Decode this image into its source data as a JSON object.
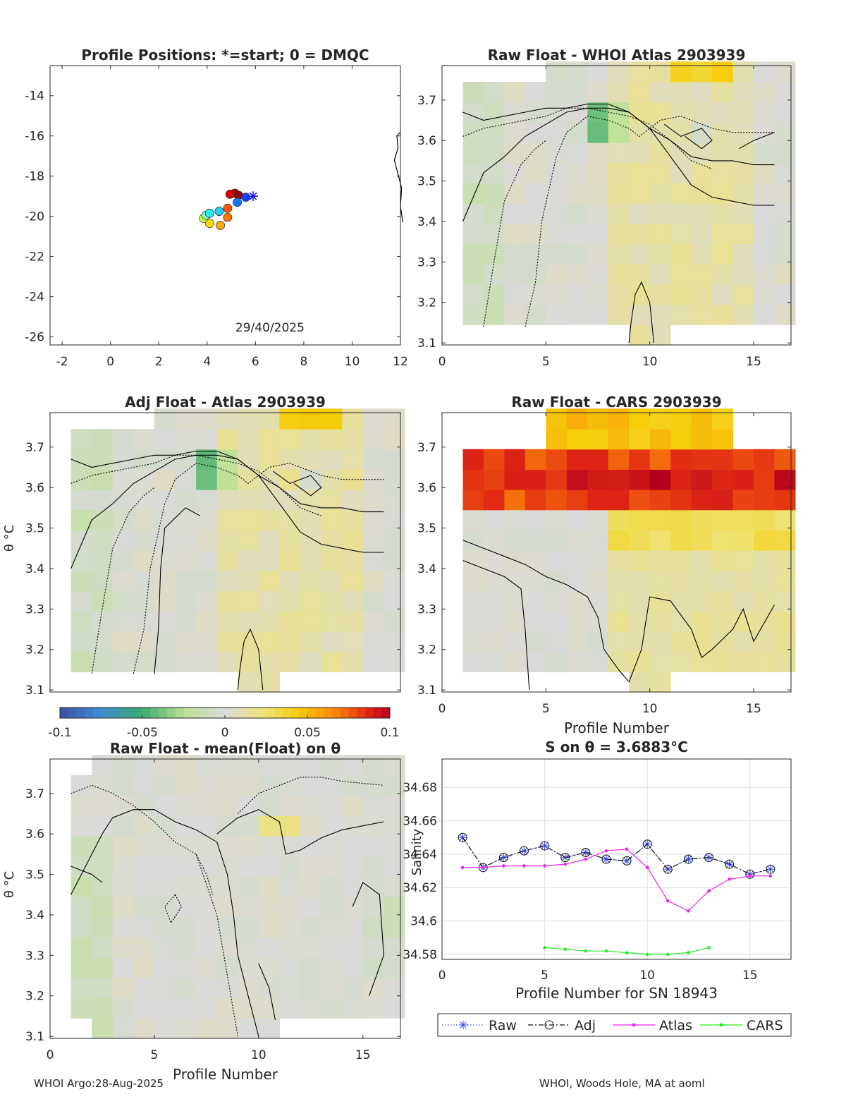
{
  "colors": {
    "raw": "#3344ee",
    "adj": "#111111",
    "atlas": "#ee22ee",
    "cars": "#22ee22",
    "contour": "#000000",
    "grid": "#dddddd"
  },
  "footer": {
    "left": "WHOI Argo:28-Aug-2025",
    "right": "WHOI, Woods Hole, MA at aoml"
  },
  "colorbar": {
    "min": -0.1,
    "max": 0.1,
    "ticks": [
      "-0.1",
      "-0.05",
      "0",
      "0.05",
      "0.1"
    ]
  },
  "chart_data": [
    {
      "id": "positions",
      "type": "scatter",
      "title": "Profile Positions: *=start; 0 = DMQC",
      "xlim": [
        -2.5,
        12
      ],
      "ylim": [
        -26.4,
        -12.5
      ],
      "xticks": [
        "-2",
        "0",
        "2",
        "4",
        "6",
        "8",
        "10",
        "12"
      ],
      "yticks": [
        "-14",
        "-16",
        "-18",
        "-20",
        "-22",
        "-24",
        "-26"
      ],
      "annotation": "29/40/2025",
      "points": [
        {
          "lon": 5.9,
          "lat": -19.0,
          "color": "#0000ff",
          "marker": "star"
        },
        {
          "lon": 5.6,
          "lat": -19.05,
          "color": "#1144ff"
        },
        {
          "lon": 5.25,
          "lat": -19.3,
          "color": "#1177ff"
        },
        {
          "lon": 4.85,
          "lat": -19.6,
          "color": "#ff5500"
        },
        {
          "lon": 4.5,
          "lat": -19.75,
          "color": "#22ccff"
        },
        {
          "lon": 4.1,
          "lat": -19.85,
          "color": "#22eeff"
        },
        {
          "lon": 3.95,
          "lat": -19.95,
          "color": "#88ffaa"
        },
        {
          "lon": 3.85,
          "lat": -20.1,
          "color": "#ccff44"
        },
        {
          "lon": 4.1,
          "lat": -20.35,
          "color": "#ffdd00"
        },
        {
          "lon": 4.55,
          "lat": -20.45,
          "color": "#ffaa00"
        },
        {
          "lon": 4.85,
          "lat": -20.05,
          "color": "#ff7700"
        },
        {
          "lon": 4.95,
          "lat": -18.9,
          "color": "#dd0000"
        },
        {
          "lon": 5.3,
          "lat": -18.95,
          "color": "#990000"
        },
        {
          "lon": 5.15,
          "lat": -18.85,
          "color": "#bb0000"
        }
      ],
      "coastline": [
        [
          12,
          -15.8
        ],
        [
          11.85,
          -16.0
        ],
        [
          11.9,
          -16.6
        ],
        [
          11.75,
          -17.2
        ],
        [
          11.9,
          -17.9
        ],
        [
          12.05,
          -18.6
        ],
        [
          12.0,
          -19.5
        ],
        [
          12.1,
          -20.3
        ]
      ]
    },
    {
      "id": "raw_whoi",
      "type": "heatmap",
      "title": "Raw Float - WHOI Atlas  2903939",
      "xlim": [
        0,
        16.8
      ],
      "ylim": [
        3.095,
        3.785
      ],
      "xticks": [
        "0",
        "5",
        "10",
        "15"
      ],
      "yticks": [
        "3.7",
        "3.6",
        "3.5",
        "3.4",
        "3.3",
        "3.2",
        "3.1"
      ],
      "ylabel": "",
      "xlabel": ""
    },
    {
      "id": "adj_atlas",
      "type": "heatmap",
      "title": "Adj Float - Atlas  2903939",
      "xlim": [
        0,
        16.8
      ],
      "ylim": [
        3.095,
        3.785
      ],
      "xticks": [],
      "yticks": [
        "3.7",
        "3.6",
        "3.5",
        "3.4",
        "3.3",
        "3.2",
        "3.1"
      ],
      "ylabel": "θ °C",
      "xlabel": ""
    },
    {
      "id": "raw_cars",
      "type": "heatmap",
      "title": "Raw Float - CARS  2903939",
      "xlim": [
        0,
        16.8
      ],
      "ylim": [
        3.095,
        3.785
      ],
      "xticks": [
        "0",
        "5",
        "10",
        "15"
      ],
      "yticks": [
        "3.7",
        "3.6",
        "3.5",
        "3.4",
        "3.3",
        "3.2",
        "3.1"
      ],
      "ylabel": "",
      "xlabel": "Profile Number"
    },
    {
      "id": "raw_mean",
      "type": "heatmap",
      "title": "Raw Float - mean(Float) on θ",
      "xlim": [
        0,
        16.8
      ],
      "ylim": [
        3.095,
        3.785
      ],
      "xticks": [
        "0",
        "5",
        "10",
        "15"
      ],
      "yticks": [
        "3.7",
        "3.6",
        "3.5",
        "3.4",
        "3.3",
        "3.2",
        "3.1"
      ],
      "ylabel": "θ °C",
      "xlabel": "Profile Number"
    },
    {
      "id": "salinity",
      "type": "line",
      "title": "S on θ = 3.6883°C",
      "xlabel": "Profile Number for SN 18943",
      "ylabel": "Salinity",
      "xlim": [
        0,
        17
      ],
      "ylim": [
        34.577,
        34.697
      ],
      "xticks": [
        0,
        5,
        10,
        15
      ],
      "yticks": [
        34.58,
        34.6,
        34.62,
        34.64,
        34.66,
        34.68
      ],
      "ytick_labels": [
        "34.58",
        "34.6",
        "34.62",
        "34.64",
        "34.66",
        "34.68"
      ],
      "grid": true,
      "legend": [
        "Raw",
        "Adj",
        "Atlas",
        "CARS"
      ],
      "legend_position": "below",
      "series": [
        {
          "name": "Raw",
          "x": [
            1,
            2,
            3,
            4,
            5,
            6,
            7,
            8,
            9,
            10,
            11,
            12,
            13,
            14,
            15,
            16
          ],
          "values": [
            34.65,
            34.632,
            34.638,
            34.642,
            34.645,
            34.638,
            34.641,
            34.637,
            34.636,
            34.646,
            34.631,
            34.637,
            34.638,
            34.634,
            34.628,
            34.631
          ]
        },
        {
          "name": "Adj",
          "x": [
            1,
            2,
            3,
            4,
            5,
            6,
            7,
            8,
            9,
            10,
            11,
            12,
            13,
            14,
            15,
            16
          ],
          "values": [
            34.65,
            34.632,
            34.638,
            34.642,
            34.645,
            34.638,
            34.641,
            34.637,
            34.636,
            34.646,
            34.631,
            34.637,
            34.638,
            34.634,
            34.628,
            34.631
          ]
        },
        {
          "name": "Atlas",
          "x": [
            1,
            2,
            3,
            4,
            5,
            6,
            7,
            8,
            9,
            10,
            11,
            12,
            13,
            14,
            15,
            16
          ],
          "values": [
            34.632,
            34.632,
            34.633,
            34.633,
            34.633,
            34.634,
            34.637,
            34.642,
            34.643,
            34.632,
            34.612,
            34.606,
            34.618,
            34.625,
            34.627,
            34.627
          ]
        },
        {
          "name": "CARS",
          "x": [
            5,
            6,
            7,
            8,
            9,
            10,
            11,
            12,
            13
          ],
          "values": [
            34.584,
            34.583,
            34.582,
            34.582,
            34.581,
            34.58,
            34.58,
            34.581,
            34.584
          ]
        }
      ]
    }
  ]
}
